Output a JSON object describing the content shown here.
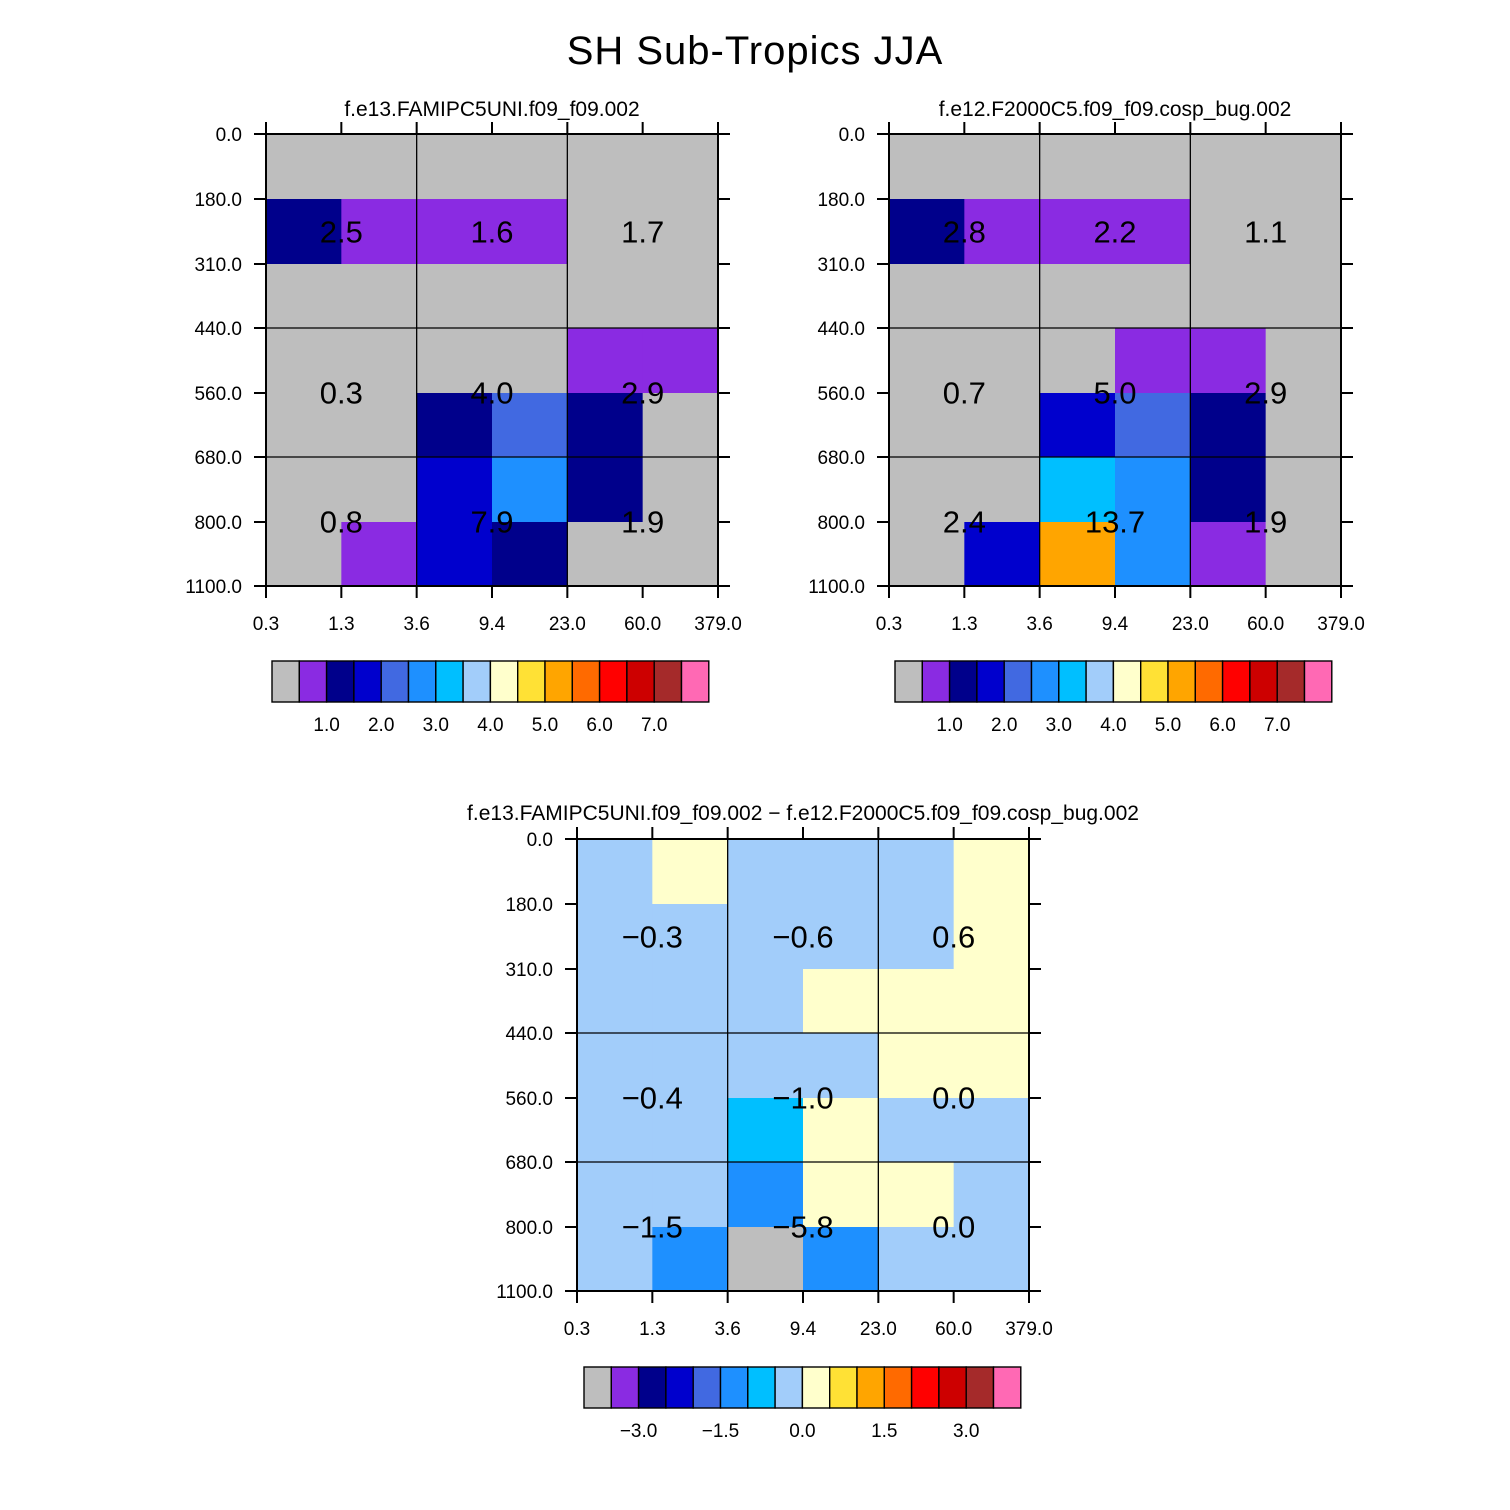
{
  "title": "SH Sub-Tropics JJA",
  "colors": {
    "abs_palette": [
      "#bebebe",
      "#8a2be2",
      "#00008b",
      "#0000cd",
      "#4169e1",
      "#1e90ff",
      "#00bfff",
      "#a2cdfa",
      "#ffffcc",
      "#ffe135",
      "#ffa500",
      "#ff6a00",
      "#ff0000",
      "#cd0000",
      "#a52a2a",
      "#ff69b4"
    ],
    "diff_palette": [
      "#bebebe",
      "#8a2be2",
      "#00008b",
      "#0000cd",
      "#4169e1",
      "#1e90ff",
      "#00bfff",
      "#a2cdfa",
      "#ffffcc",
      "#ffe135",
      "#ffa500",
      "#ff6a00",
      "#ff0000",
      "#cd0000",
      "#a52a2a",
      "#ff69b4"
    ]
  },
  "chart_data": [
    {
      "type": "heatmap",
      "subtitle": "f.e13.FAMIPC5UNI.f09_f09.002",
      "x_ticks": [
        "0.3",
        "1.3",
        "3.6",
        "9.4",
        "23.0",
        "60.0",
        "379.0"
      ],
      "y_ticks": [
        "0.0",
        "180.0",
        "310.0",
        "440.0",
        "560.0",
        "680.0",
        "800.0",
        "1100.0"
      ],
      "cells": [
        [
          0,
          0,
          0,
          0,
          0,
          0
        ],
        [
          2,
          1,
          1,
          1,
          0,
          0
        ],
        [
          0,
          0,
          0,
          0,
          0,
          0
        ],
        [
          0,
          0,
          0,
          0,
          1,
          1
        ],
        [
          0,
          0,
          2,
          4,
          2,
          0
        ],
        [
          0,
          0,
          3,
          5,
          2,
          0
        ],
        [
          0,
          1,
          3,
          2,
          0,
          0
        ]
      ],
      "labels": [
        {
          "row": 0,
          "col": 0,
          "text": "2.5"
        },
        {
          "row": 0,
          "col": 1,
          "text": "1.6"
        },
        {
          "row": 0,
          "col": 2,
          "text": "1.7"
        },
        {
          "row": 1,
          "col": 0,
          "text": "0.3"
        },
        {
          "row": 1,
          "col": 1,
          "text": "4.0"
        },
        {
          "row": 1,
          "col": 2,
          "text": "2.9"
        },
        {
          "row": 2,
          "col": 0,
          "text": "0.8"
        },
        {
          "row": 2,
          "col": 1,
          "text": "7.9"
        },
        {
          "row": 2,
          "col": 2,
          "text": "1.9"
        }
      ],
      "colorbar_labels": [
        "1.0",
        "2.0",
        "3.0",
        "4.0",
        "5.0",
        "6.0",
        "7.0"
      ],
      "palette": "abs_palette"
    },
    {
      "type": "heatmap",
      "subtitle": "f.e12.F2000C5.f09_f09.cosp_bug.002",
      "x_ticks": [
        "0.3",
        "1.3",
        "3.6",
        "9.4",
        "23.0",
        "60.0",
        "379.0"
      ],
      "y_ticks": [
        "0.0",
        "180.0",
        "310.0",
        "440.0",
        "560.0",
        "680.0",
        "800.0",
        "1100.0"
      ],
      "cells": [
        [
          0,
          0,
          0,
          0,
          0,
          0
        ],
        [
          2,
          1,
          1,
          1,
          0,
          0
        ],
        [
          0,
          0,
          0,
          0,
          0,
          0
        ],
        [
          0,
          0,
          0,
          1,
          1,
          0
        ],
        [
          0,
          0,
          3,
          4,
          2,
          0
        ],
        [
          0,
          0,
          6,
          5,
          2,
          0
        ],
        [
          0,
          3,
          10,
          5,
          1,
          0
        ]
      ],
      "labels": [
        {
          "row": 0,
          "col": 0,
          "text": "2.8"
        },
        {
          "row": 0,
          "col": 1,
          "text": "2.2"
        },
        {
          "row": 0,
          "col": 2,
          "text": "1.1"
        },
        {
          "row": 1,
          "col": 0,
          "text": "0.7"
        },
        {
          "row": 1,
          "col": 1,
          "text": "5.0"
        },
        {
          "row": 1,
          "col": 2,
          "text": "2.9"
        },
        {
          "row": 2,
          "col": 0,
          "text": "2.4"
        },
        {
          "row": 2,
          "col": 1,
          "text": "13.7"
        },
        {
          "row": 2,
          "col": 2,
          "text": "1.9"
        }
      ],
      "colorbar_labels": [
        "1.0",
        "2.0",
        "3.0",
        "4.0",
        "5.0",
        "6.0",
        "7.0"
      ],
      "palette": "abs_palette"
    },
    {
      "type": "heatmap",
      "subtitle": "f.e13.FAMIPC5UNI.f09_f09.002 − f.e12.F2000C5.f09_f09.cosp_bug.002",
      "x_ticks": [
        "0.3",
        "1.3",
        "3.6",
        "9.4",
        "23.0",
        "60.0",
        "379.0"
      ],
      "y_ticks": [
        "0.0",
        "180.0",
        "310.0",
        "440.0",
        "560.0",
        "680.0",
        "800.0",
        "1100.0"
      ],
      "cells": [
        [
          7,
          8,
          7,
          7,
          7,
          8
        ],
        [
          7,
          7,
          7,
          7,
          7,
          8
        ],
        [
          7,
          7,
          7,
          8,
          8,
          8
        ],
        [
          7,
          7,
          7,
          7,
          8,
          8
        ],
        [
          7,
          7,
          6,
          8,
          7,
          7
        ],
        [
          7,
          7,
          5,
          8,
          8,
          7
        ],
        [
          7,
          5,
          0,
          5,
          7,
          7
        ]
      ],
      "labels": [
        {
          "row": 0,
          "col": 0,
          "text": "−0.3"
        },
        {
          "row": 0,
          "col": 1,
          "text": "−0.6"
        },
        {
          "row": 0,
          "col": 2,
          "text": "0.6"
        },
        {
          "row": 1,
          "col": 0,
          "text": "−0.4"
        },
        {
          "row": 1,
          "col": 1,
          "text": "−1.0"
        },
        {
          "row": 1,
          "col": 2,
          "text": "0.0"
        },
        {
          "row": 2,
          "col": 0,
          "text": "−1.5"
        },
        {
          "row": 2,
          "col": 1,
          "text": "−5.8"
        },
        {
          "row": 2,
          "col": 2,
          "text": "0.0"
        }
      ],
      "colorbar_labels": [
        "−3.0",
        "−1.5",
        "0.0",
        "1.5",
        "3.0"
      ],
      "palette": "diff_palette"
    }
  ]
}
